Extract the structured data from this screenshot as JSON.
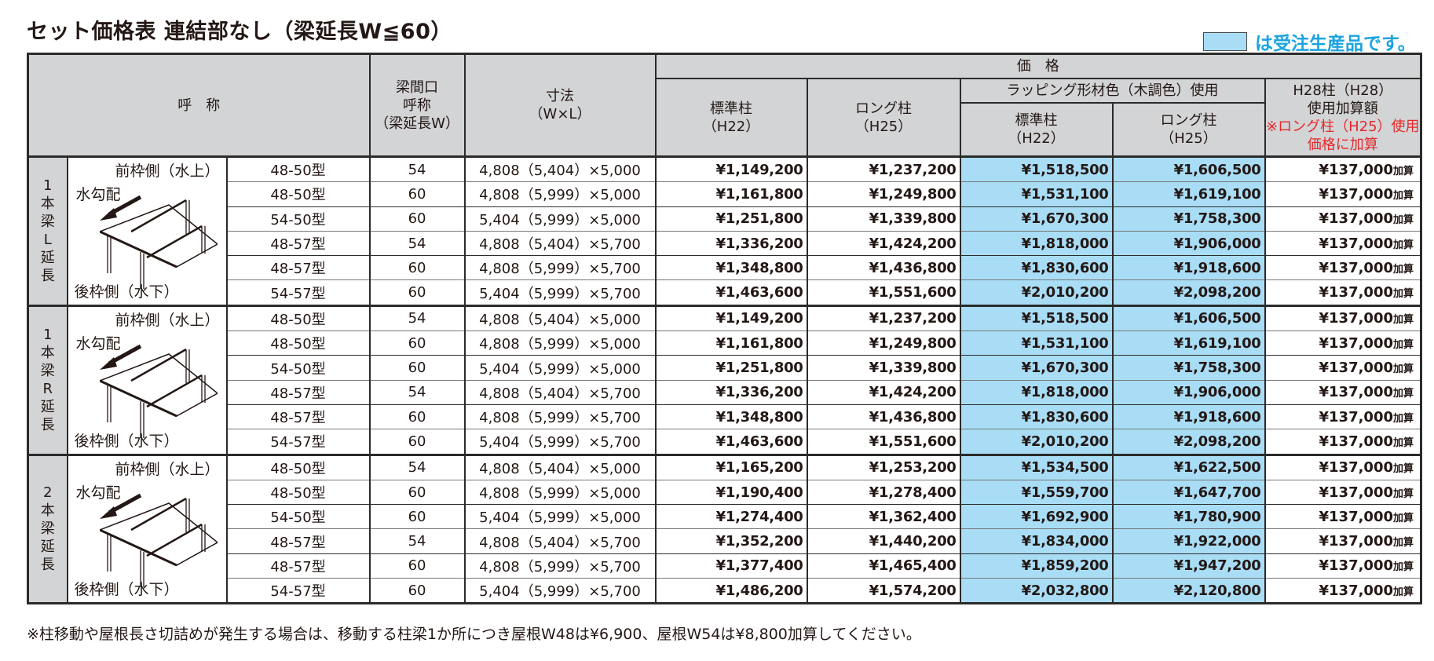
{
  "title": "セット価格表 連結部なし（梁延長W≦60）",
  "legend": {
    "swatch_color": "#a9ddf6",
    "text": "は受注生産品です。",
    "text_color": "#1aa3e0"
  },
  "header": {
    "name": "呼　称",
    "beam_width": [
      "梁間口",
      "呼称",
      "（梁延長W）"
    ],
    "dimension": [
      "寸法",
      "（W×L）"
    ],
    "price": "価　格",
    "standard_post": [
      "標準柱",
      "（H22）"
    ],
    "long_post": [
      "ロング柱",
      "（H25）"
    ],
    "wrapping": "ラッピング形材色（木調色）使用",
    "wrap_standard_post": [
      "標準柱",
      "（H22）"
    ],
    "wrap_long_post": [
      "ロング柱",
      "（H25）"
    ],
    "h28": [
      "H28柱（H28）",
      "使用加算額"
    ],
    "h28_note": [
      "※ロング柱（H25）使用",
      "価格に加算"
    ]
  },
  "illustration": {
    "front_label": "前枠側（水上）",
    "slope_label": "水勾配",
    "rear_label": "後枠側（水下）"
  },
  "groups": [
    {
      "label": [
        "1",
        "本",
        "梁",
        "L",
        "延",
        "長"
      ],
      "rows": [
        {
          "type": "48-50型",
          "w": "54",
          "dim": "4,808（5,404）×5,000",
          "std": "¥1,149,200",
          "long": "¥1,237,200",
          "wrap_std": "¥1,518,500",
          "wrap_long": "¥1,606,500",
          "h28": "¥137,000",
          "h28_suffix": "加算"
        },
        {
          "type": "48-50型",
          "w": "60",
          "dim": "4,808（5,999）×5,000",
          "std": "¥1,161,800",
          "long": "¥1,249,800",
          "wrap_std": "¥1,531,100",
          "wrap_long": "¥1,619,100",
          "h28": "¥137,000",
          "h28_suffix": "加算"
        },
        {
          "type": "54-50型",
          "w": "60",
          "dim": "5,404（5,999）×5,000",
          "std": "¥1,251,800",
          "long": "¥1,339,800",
          "wrap_std": "¥1,670,300",
          "wrap_long": "¥1,758,300",
          "h28": "¥137,000",
          "h28_suffix": "加算"
        },
        {
          "type": "48-57型",
          "w": "54",
          "dim": "4,808（5,404）×5,700",
          "std": "¥1,336,200",
          "long": "¥1,424,200",
          "wrap_std": "¥1,818,000",
          "wrap_long": "¥1,906,000",
          "h28": "¥137,000",
          "h28_suffix": "加算"
        },
        {
          "type": "48-57型",
          "w": "60",
          "dim": "4,808（5,999）×5,700",
          "std": "¥1,348,800",
          "long": "¥1,436,800",
          "wrap_std": "¥1,830,600",
          "wrap_long": "¥1,918,600",
          "h28": "¥137,000",
          "h28_suffix": "加算"
        },
        {
          "type": "54-57型",
          "w": "60",
          "dim": "5,404（5,999）×5,700",
          "std": "¥1,463,600",
          "long": "¥1,551,600",
          "wrap_std": "¥2,010,200",
          "wrap_long": "¥2,098,200",
          "h28": "¥137,000",
          "h28_suffix": "加算"
        }
      ]
    },
    {
      "label": [
        "1",
        "本",
        "梁",
        "R",
        "延",
        "長"
      ],
      "rows": [
        {
          "type": "48-50型",
          "w": "54",
          "dim": "4,808（5,404）×5,000",
          "std": "¥1,149,200",
          "long": "¥1,237,200",
          "wrap_std": "¥1,518,500",
          "wrap_long": "¥1,606,500",
          "h28": "¥137,000",
          "h28_suffix": "加算"
        },
        {
          "type": "48-50型",
          "w": "60",
          "dim": "4,808（5,999）×5,000",
          "std": "¥1,161,800",
          "long": "¥1,249,800",
          "wrap_std": "¥1,531,100",
          "wrap_long": "¥1,619,100",
          "h28": "¥137,000",
          "h28_suffix": "加算"
        },
        {
          "type": "54-50型",
          "w": "60",
          "dim": "5,404（5,999）×5,000",
          "std": "¥1,251,800",
          "long": "¥1,339,800",
          "wrap_std": "¥1,670,300",
          "wrap_long": "¥1,758,300",
          "h28": "¥137,000",
          "h28_suffix": "加算"
        },
        {
          "type": "48-57型",
          "w": "54",
          "dim": "4,808（5,404）×5,700",
          "std": "¥1,336,200",
          "long": "¥1,424,200",
          "wrap_std": "¥1,818,000",
          "wrap_long": "¥1,906,000",
          "h28": "¥137,000",
          "h28_suffix": "加算"
        },
        {
          "type": "48-57型",
          "w": "60",
          "dim": "4,808（5,999）×5,700",
          "std": "¥1,348,800",
          "long": "¥1,436,800",
          "wrap_std": "¥1,830,600",
          "wrap_long": "¥1,918,600",
          "h28": "¥137,000",
          "h28_suffix": "加算"
        },
        {
          "type": "54-57型",
          "w": "60",
          "dim": "5,404（5,999）×5,700",
          "std": "¥1,463,600",
          "long": "¥1,551,600",
          "wrap_std": "¥2,010,200",
          "wrap_long": "¥2,098,200",
          "h28": "¥137,000",
          "h28_suffix": "加算"
        }
      ]
    },
    {
      "label": [
        "2",
        "本",
        "梁",
        "延",
        "長"
      ],
      "rows": [
        {
          "type": "48-50型",
          "w": "54",
          "dim": "4,808（5,404）×5,000",
          "std": "¥1,165,200",
          "long": "¥1,253,200",
          "wrap_std": "¥1,534,500",
          "wrap_long": "¥1,622,500",
          "h28": "¥137,000",
          "h28_suffix": "加算"
        },
        {
          "type": "48-50型",
          "w": "60",
          "dim": "4,808（5,999）×5,000",
          "std": "¥1,190,400",
          "long": "¥1,278,400",
          "wrap_std": "¥1,559,700",
          "wrap_long": "¥1,647,700",
          "h28": "¥137,000",
          "h28_suffix": "加算"
        },
        {
          "type": "54-50型",
          "w": "60",
          "dim": "5,404（5,999）×5,000",
          "std": "¥1,274,400",
          "long": "¥1,362,400",
          "wrap_std": "¥1,692,900",
          "wrap_long": "¥1,780,900",
          "h28": "¥137,000",
          "h28_suffix": "加算"
        },
        {
          "type": "48-57型",
          "w": "54",
          "dim": "4,808（5,404）×5,700",
          "std": "¥1,352,200",
          "long": "¥1,440,200",
          "wrap_std": "¥1,834,000",
          "wrap_long": "¥1,922,000",
          "h28": "¥137,000",
          "h28_suffix": "加算"
        },
        {
          "type": "48-57型",
          "w": "60",
          "dim": "4,808（5,999）×5,700",
          "std": "¥1,377,400",
          "long": "¥1,465,400",
          "wrap_std": "¥1,859,200",
          "wrap_long": "¥1,947,200",
          "h28": "¥137,000",
          "h28_suffix": "加算"
        },
        {
          "type": "54-57型",
          "w": "60",
          "dim": "5,404（5,999）×5,700",
          "std": "¥1,486,200",
          "long": "¥1,574,200",
          "wrap_std": "¥2,032,800",
          "wrap_long": "¥2,120,800",
          "h28": "¥137,000",
          "h28_suffix": "加算"
        }
      ]
    }
  ],
  "footnote": "※柱移動や屋根長さ切詰めが発生する場合は、移動する柱梁1か所につき屋根W48は¥6,900、屋根W54は¥8,800加算してください。"
}
